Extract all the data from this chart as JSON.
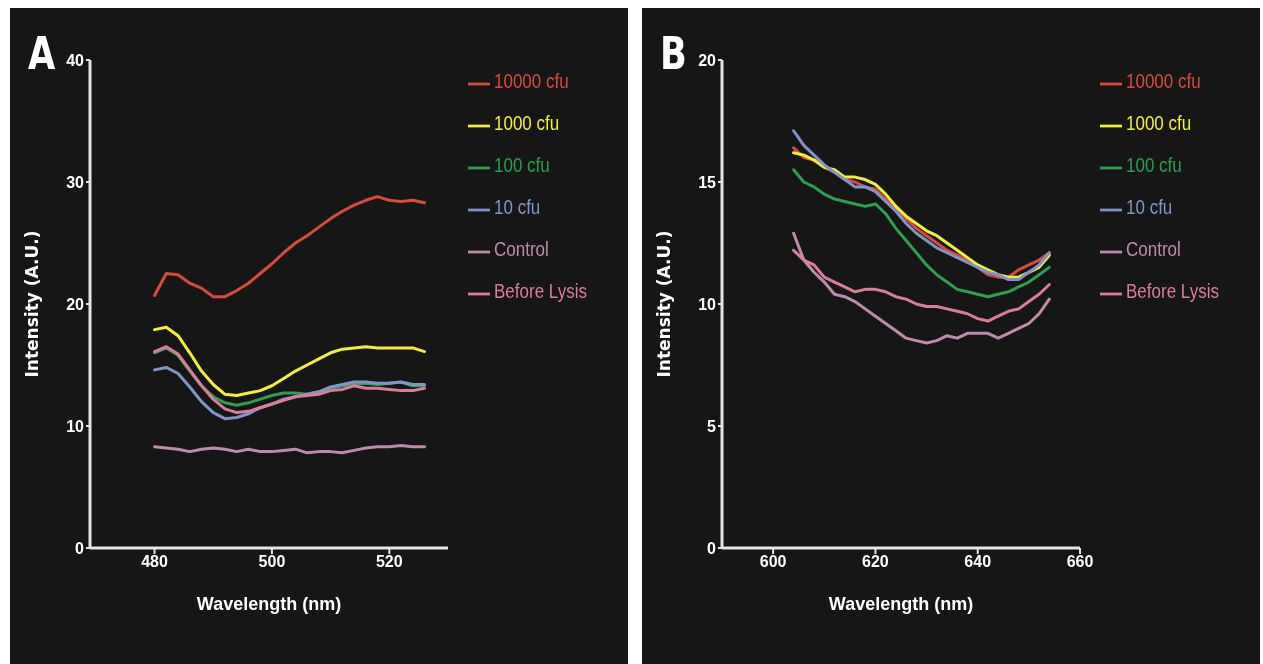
{
  "chart_data": [
    {
      "type": "line",
      "title": "A",
      "xlabel": "Wavelength (nm)",
      "ylabel": "Intensity (A.U.)",
      "xlim": [
        469,
        530
      ],
      "ylim": [
        0,
        40
      ],
      "xticks": [
        480,
        500,
        520
      ],
      "yticks": [
        0,
        10,
        20,
        30,
        40
      ],
      "legend": "right",
      "x": [
        480,
        482,
        484,
        486,
        488,
        490,
        492,
        494,
        496,
        498,
        500,
        502,
        504,
        506,
        508,
        510,
        512,
        514,
        516,
        518,
        520,
        522,
        524,
        526
      ],
      "series": [
        {
          "name": "10000 cfu",
          "color": "#d94a3c",
          "values": [
            20.7,
            22.5,
            22.4,
            21.7,
            21.3,
            20.6,
            20.6,
            21.1,
            21.7,
            22.5,
            23.3,
            24.2,
            25.0,
            25.6,
            26.3,
            27.0,
            27.6,
            28.1,
            28.5,
            28.8,
            28.5,
            28.4,
            28.5,
            28.3
          ]
        },
        {
          "name": "1000 cfu",
          "color": "#f2ee3a",
          "values": [
            17.9,
            18.1,
            17.4,
            16.0,
            14.5,
            13.4,
            12.6,
            12.5,
            12.7,
            12.9,
            13.3,
            13.9,
            14.5,
            15.0,
            15.5,
            16.0,
            16.3,
            16.4,
            16.5,
            16.4,
            16.4,
            16.4,
            16.4,
            16.1
          ]
        },
        {
          "name": "100 cfu",
          "color": "#2e9e4f",
          "values": [
            16.0,
            16.4,
            15.8,
            14.5,
            13.3,
            12.4,
            11.9,
            11.7,
            11.9,
            12.2,
            12.5,
            12.7,
            12.7,
            12.6,
            12.8,
            13.1,
            13.3,
            13.4,
            13.5,
            13.4,
            13.5,
            13.6,
            13.3,
            13.3
          ]
        },
        {
          "name": "10 cfu",
          "color": "#7f95c9",
          "values": [
            14.6,
            14.8,
            14.3,
            13.2,
            12.0,
            11.1,
            10.6,
            10.7,
            11.0,
            11.5,
            11.8,
            12.2,
            12.4,
            12.6,
            12.8,
            13.2,
            13.4,
            13.6,
            13.6,
            13.5,
            13.5,
            13.6,
            13.4,
            13.4
          ]
        },
        {
          "name": "Control",
          "color": "#c08aae",
          "values": [
            8.3,
            8.2,
            8.1,
            7.9,
            8.1,
            8.2,
            8.1,
            7.9,
            8.1,
            7.9,
            7.9,
            8.0,
            8.1,
            7.8,
            7.9,
            7.9,
            7.8,
            8.0,
            8.2,
            8.3,
            8.3,
            8.4,
            8.3,
            8.3
          ]
        },
        {
          "name": "Before Lysis",
          "color": "#dd7b9a",
          "values": [
            16.1,
            16.5,
            15.9,
            14.6,
            13.3,
            12.2,
            11.4,
            11.1,
            11.2,
            11.5,
            11.8,
            12.1,
            12.4,
            12.5,
            12.6,
            12.9,
            13.0,
            13.3,
            13.1,
            13.1,
            13.0,
            12.9,
            12.9,
            13.1
          ]
        }
      ]
    },
    {
      "type": "line",
      "title": "B",
      "xlabel": "Wavelength (nm)",
      "ylabel": "Intensity (A.U.)",
      "xlim": [
        590,
        660
      ],
      "ylim": [
        0,
        20
      ],
      "xticks": [
        600,
        620,
        640,
        660
      ],
      "yticks": [
        0,
        5,
        10,
        15,
        20
      ],
      "legend": "right",
      "x": [
        604,
        606,
        608,
        610,
        612,
        614,
        616,
        618,
        620,
        622,
        624,
        626,
        628,
        630,
        632,
        634,
        636,
        638,
        640,
        642,
        644,
        646,
        648,
        650,
        652,
        654
      ],
      "series": [
        {
          "name": "10000 cfu",
          "color": "#d94a3c",
          "values": [
            16.4,
            16.0,
            15.9,
            15.6,
            15.4,
            15.1,
            15.0,
            14.8,
            14.7,
            14.3,
            13.9,
            13.5,
            13.1,
            12.8,
            12.5,
            12.2,
            12.0,
            11.8,
            11.5,
            11.2,
            11.1,
            11.1,
            11.4,
            11.6,
            11.8,
            12.1
          ]
        },
        {
          "name": "1000 cfu",
          "color": "#f2ee3a",
          "values": [
            16.2,
            16.1,
            15.9,
            15.6,
            15.5,
            15.2,
            15.2,
            15.1,
            14.9,
            14.5,
            14.0,
            13.6,
            13.3,
            13.0,
            12.8,
            12.5,
            12.2,
            11.9,
            11.6,
            11.4,
            11.2,
            11.1,
            11.1,
            11.3,
            11.5,
            12.0
          ]
        },
        {
          "name": "100 cfu",
          "color": "#2e9e4f",
          "values": [
            15.5,
            15.0,
            14.8,
            14.5,
            14.3,
            14.2,
            14.1,
            14.0,
            14.1,
            13.7,
            13.1,
            12.6,
            12.1,
            11.6,
            11.2,
            10.9,
            10.6,
            10.5,
            10.4,
            10.3,
            10.4,
            10.5,
            10.7,
            10.9,
            11.2,
            11.5
          ]
        },
        {
          "name": "10 cfu",
          "color": "#7f95c9",
          "values": [
            17.1,
            16.5,
            16.1,
            15.7,
            15.4,
            15.1,
            14.8,
            14.8,
            14.6,
            14.2,
            13.8,
            13.3,
            12.9,
            12.6,
            12.3,
            12.1,
            11.9,
            11.7,
            11.5,
            11.3,
            11.2,
            11.0,
            11.0,
            11.3,
            11.6,
            12.1
          ]
        },
        {
          "name": "Control",
          "color": "#c08aae",
          "values": [
            12.9,
            11.8,
            11.3,
            10.9,
            10.4,
            10.3,
            10.1,
            9.8,
            9.5,
            9.2,
            8.9,
            8.6,
            8.5,
            8.4,
            8.5,
            8.7,
            8.6,
            8.8,
            8.8,
            8.8,
            8.6,
            8.8,
            9.0,
            9.2,
            9.6,
            10.2
          ]
        },
        {
          "name": "Before Lysis",
          "color": "#dd7b9a",
          "values": [
            12.2,
            11.8,
            11.6,
            11.1,
            10.9,
            10.7,
            10.5,
            10.6,
            10.6,
            10.5,
            10.3,
            10.2,
            10.0,
            9.9,
            9.9,
            9.8,
            9.7,
            9.6,
            9.4,
            9.3,
            9.5,
            9.7,
            9.8,
            10.1,
            10.4,
            10.8
          ]
        }
      ]
    }
  ]
}
